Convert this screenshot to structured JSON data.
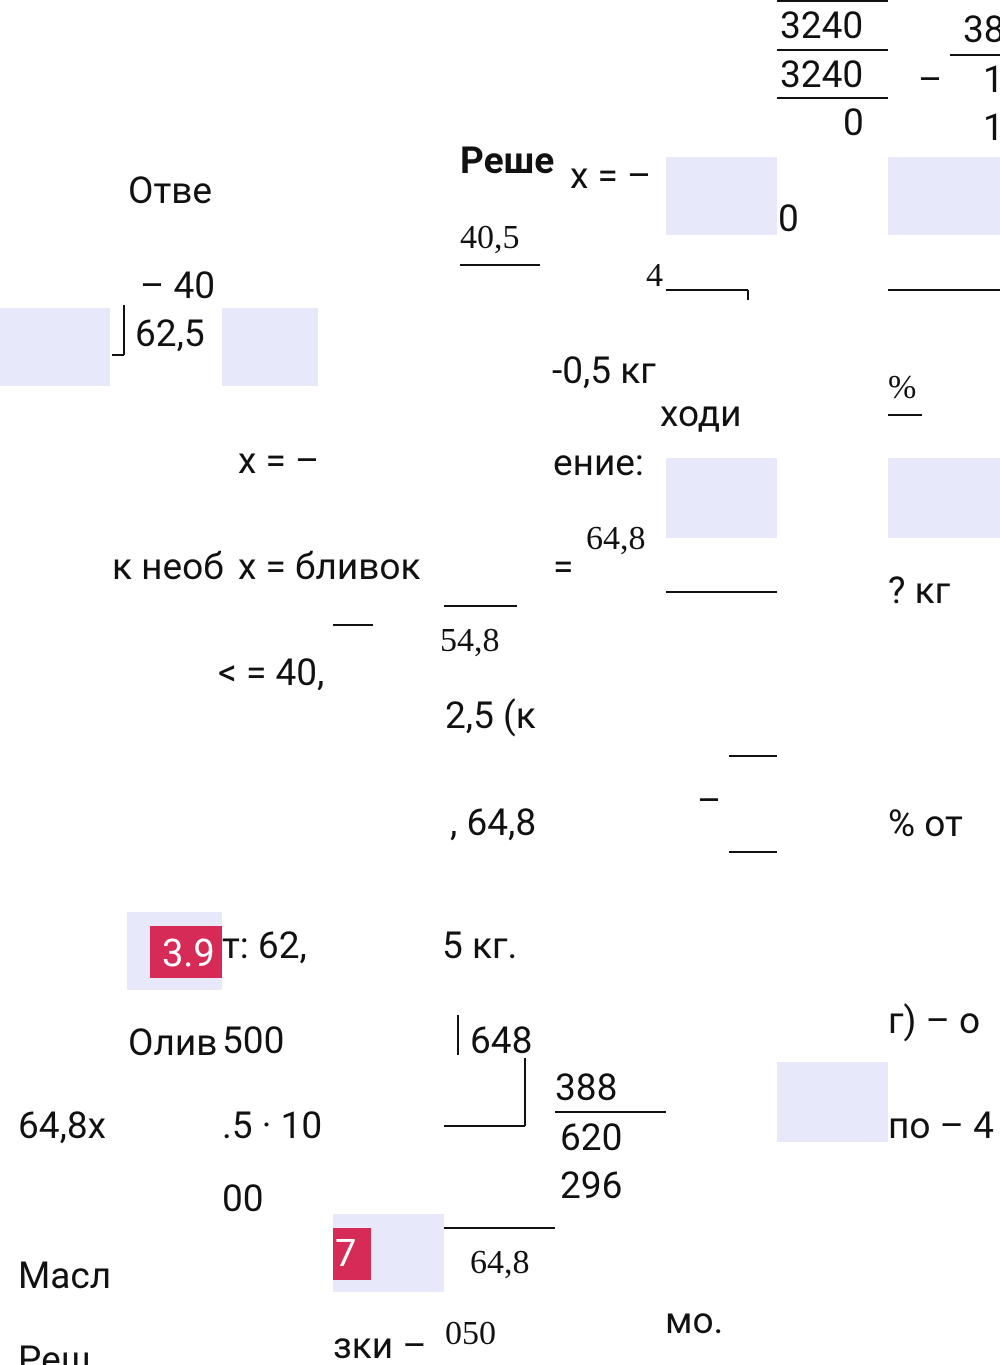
{
  "fragments": [
    "3240",
    "3240",
    "0",
    "38",
    "–",
    "1",
    "1",
    "Отве",
    "Реше",
    "x = –",
    "0",
    "40,5",
    "– 40",
    "4",
    "62,5",
    "-0,5 кг",
    "%",
    "ходи",
    "x = –",
    "ение:",
    "64,8",
    "к необ",
    "x = бливок",
    "=",
    "? кг",
    "54,8",
    "< = 40,",
    "2,5 (к",
    ", 64,8",
    "–",
    "% от",
    "т: 62,",
    "5 кг.",
    "Олив",
    "500",
    "648",
    "г) – о",
    "388",
    "620",
    "296",
    "64,8x",
    ".5 · 10",
    "по – 4",
    "00",
    "64,8",
    "Масл",
    "мо.",
    "зки –",
    "050",
    "Реш"
  ],
  "badges": [
    "3.9",
    "7"
  ]
}
